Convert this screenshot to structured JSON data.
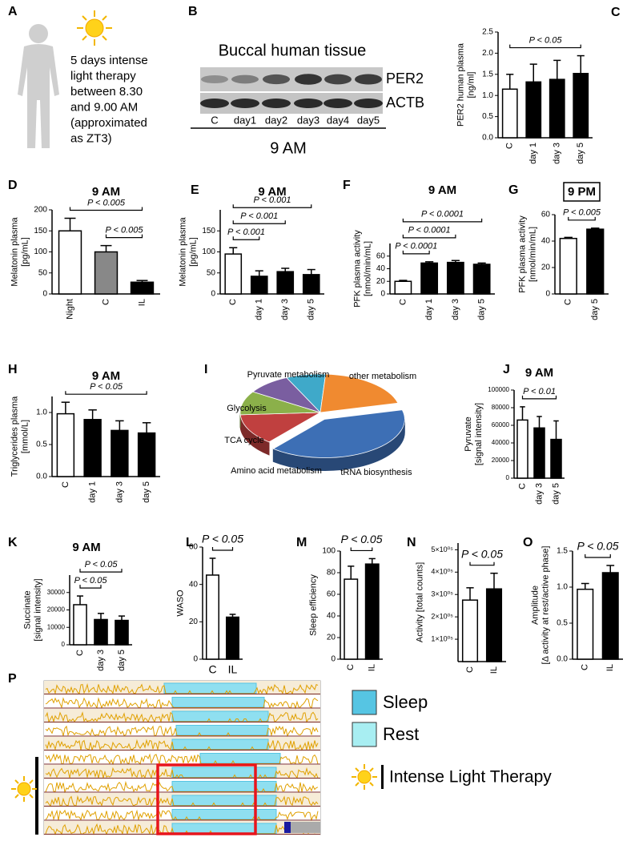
{
  "panel_a": {
    "panel": "A",
    "lines": [
      "5 days intense",
      "light therapy",
      "between 8.30",
      "and 9.00 AM",
      "(approximated",
      "as  ZT3)"
    ]
  },
  "panel_b": {
    "panel": "B",
    "title": "Buccal human tissue",
    "rows": [
      "PER2",
      "ACTB"
    ],
    "lanes": [
      "C",
      "day1",
      "day2",
      "day3",
      "day4",
      "day5"
    ],
    "time": "9 AM"
  },
  "chart_data": [
    {
      "panel": "C",
      "type": "bar",
      "ylabel": [
        "PER2 human plasma",
        "[ng/ml]"
      ],
      "categories": [
        "C",
        "day 1",
        "day 3",
        "day 5"
      ],
      "values": [
        1.15,
        1.32,
        1.38,
        1.52
      ],
      "errors": [
        0.35,
        0.42,
        0.45,
        0.42
      ],
      "colors": [
        "#ffffff",
        "#000000",
        "#000000",
        "#000000"
      ],
      "ylim": [
        0,
        2.5
      ],
      "yticks": [
        {
          "value": 0,
          "label": "0.0"
        },
        {
          "value": 0.5,
          "label": "0.5"
        },
        {
          "value": 1,
          "label": "1.0"
        },
        {
          "value": 1.5,
          "label": "1.5"
        },
        {
          "value": 2,
          "label": "2.0"
        },
        {
          "value": 2.5,
          "label": "2.5"
        }
      ],
      "annotations": [
        {
          "text": "P < 0.05",
          "between": [
            "C",
            "day 5"
          ]
        }
      ]
    },
    {
      "panel": "D",
      "type": "bar",
      "title": "9 AM",
      "ylabel": [
        "Melatonin plasma",
        "[pg/mL]"
      ],
      "categories": [
        "Night",
        "C",
        "IL"
      ],
      "values": [
        150,
        100,
        28
      ],
      "errors": [
        30,
        15,
        4
      ],
      "colors": [
        "#ffffff",
        "#888888",
        "#000000"
      ],
      "ylim": [
        0,
        200
      ],
      "yticks": [
        0,
        50,
        100,
        150,
        200
      ],
      "annotations": [
        {
          "text": "P < 0.005",
          "between": [
            "Night",
            "IL"
          ]
        },
        {
          "text": "P < 0.005",
          "between": [
            "C",
            "IL"
          ]
        }
      ]
    },
    {
      "panel": "E",
      "type": "bar",
      "title": "9 AM",
      "ylabel": [
        "Melatonin plasma",
        "[pg/mL]"
      ],
      "categories": [
        "C",
        "day 1",
        "day 3",
        "day 5"
      ],
      "values": [
        95,
        42,
        53,
        46
      ],
      "errors": [
        15,
        13,
        8,
        12
      ],
      "colors": [
        "#ffffff",
        "#000000",
        "#000000",
        "#000000"
      ],
      "ylim": [
        0,
        200
      ],
      "yticks": [
        0,
        50,
        100,
        150
      ],
      "annotations": [
        {
          "text": "P < 0.001",
          "between": [
            "C",
            "day 5"
          ]
        },
        {
          "text": "P < 0.001",
          "between": [
            "C",
            "day 3"
          ]
        },
        {
          "text": "P < 0.001",
          "between": [
            "C",
            "day 1"
          ]
        }
      ]
    },
    {
      "panel": "F",
      "type": "bar",
      "title": "9  AM",
      "ylabel": [
        "PFK plasma activity",
        "[nmol/min/mL]"
      ],
      "categories": [
        "C",
        "day 1",
        "day 3",
        "day 5"
      ],
      "values": [
        20,
        49,
        50,
        47
      ],
      "errors": [
        1.5,
        2,
        3,
        2
      ],
      "colors": [
        "#ffffff",
        "#000000",
        "#000000",
        "#000000"
      ],
      "ylim": [
        0,
        80
      ],
      "yticks": [
        0,
        20,
        40,
        60
      ],
      "annotations": [
        {
          "text": "P < 0.0001",
          "between": [
            "C",
            "day 5"
          ]
        },
        {
          "text": "P < 0.0001",
          "between": [
            "C",
            "day 3"
          ]
        },
        {
          "text": "P < 0.0001",
          "between": [
            "C",
            "day 1"
          ]
        }
      ]
    },
    {
      "panel": "G",
      "type": "bar",
      "title": "9 PM",
      "title_box": true,
      "ylabel": [
        "PFK plasma activity",
        "[nmol/min/mL]"
      ],
      "categories": [
        "C",
        "day 5"
      ],
      "values": [
        42,
        49
      ],
      "errors": [
        0.8,
        0.8
      ],
      "colors": [
        "#ffffff",
        "#000000"
      ],
      "ylim": [
        0,
        60
      ],
      "yticks": [
        0,
        20,
        40,
        60
      ],
      "annotations": [
        {
          "text": "P < 0.005",
          "between": [
            "C",
            "day 5"
          ]
        }
      ]
    },
    {
      "panel": "H",
      "type": "bar",
      "title": "9 AM",
      "ylabel": [
        "Triglycerides plasma",
        "[mmol/L]"
      ],
      "categories": [
        "C",
        "day 1",
        "day 3",
        "day 5"
      ],
      "values": [
        0.98,
        0.89,
        0.72,
        0.68
      ],
      "errors": [
        0.18,
        0.15,
        0.15,
        0.16
      ],
      "colors": [
        "#ffffff",
        "#000000",
        "#000000",
        "#000000"
      ],
      "ylim": [
        0,
        1.25
      ],
      "yticks": [
        {
          "value": 0,
          "label": "0.0"
        },
        {
          "value": 0.5,
          "label": "0.5"
        },
        {
          "value": 1,
          "label": "1.0"
        }
      ],
      "annotations": [
        {
          "text": "P < 0.05",
          "between": [
            "C",
            "day 5"
          ]
        }
      ]
    },
    {
      "panel": "I",
      "type": "pie",
      "categories": [
        "Pyruvate metabolism",
        "other metabolism",
        "tRNA biosynthesis",
        "Amino acid metabolism",
        "TCA cycle",
        "Glycolysis"
      ],
      "values": [
        8,
        20,
        40,
        13,
        10,
        9
      ],
      "colors": [
        "#3fa9c9",
        "#f08a30",
        "#3d6fb5",
        "#c0403f",
        "#8bb04a",
        "#7a5ea0"
      ]
    },
    {
      "panel": "J",
      "type": "bar",
      "title": "9 AM",
      "ylabel": [
        "Pyruvate",
        "[signal intensity]"
      ],
      "categories": [
        "C",
        "day 3",
        "day 5"
      ],
      "values": [
        66000,
        57000,
        44000
      ],
      "errors": [
        15000,
        13000,
        21000
      ],
      "colors": [
        "#ffffff",
        "#000000",
        "#000000"
      ],
      "ylim": [
        0,
        100000
      ],
      "yticks": [
        0,
        20000,
        40000,
        60000,
        80000,
        100000
      ],
      "annotations": [
        {
          "text": "P < 0.01",
          "between": [
            "C",
            "day 5"
          ]
        }
      ]
    },
    {
      "panel": "K",
      "type": "bar",
      "title": "9  AM",
      "ylabel": [
        "Succinate",
        "[signal intensity]"
      ],
      "categories": [
        "C",
        "day 3",
        "day 5"
      ],
      "values": [
        23000,
        14500,
        14000
      ],
      "errors": [
        5000,
        3500,
        2500
      ],
      "colors": [
        "#ffffff",
        "#000000",
        "#000000"
      ],
      "ylim": [
        0,
        40000
      ],
      "yticks": [
        0,
        10000,
        20000,
        30000
      ],
      "annotations": [
        {
          "text": "P < 0.05",
          "between": [
            "C",
            "day 5"
          ]
        },
        {
          "text": "P < 0.05",
          "between": [
            "C",
            "day 3"
          ]
        }
      ]
    },
    {
      "panel": "L",
      "type": "bar",
      "ylabel": [
        "WASO"
      ],
      "categories": [
        "C",
        "IL"
      ],
      "values": [
        45,
        22.5
      ],
      "errors": [
        9,
        1.5
      ],
      "colors": [
        "#ffffff",
        "#000000"
      ],
      "ylim": [
        0,
        60
      ],
      "yticks": [
        0,
        20,
        40,
        60
      ],
      "annotations": [
        {
          "text": "P < 0.05",
          "between": [
            "C",
            "IL"
          ]
        }
      ]
    },
    {
      "panel": "M",
      "type": "bar",
      "ylabel": [
        "Sleep efficiency"
      ],
      "categories": [
        "C",
        "IL"
      ],
      "values": [
        74,
        88
      ],
      "errors": [
        12,
        5
      ],
      "colors": [
        "#ffffff",
        "#000000"
      ],
      "ylim": [
        0,
        100
      ],
      "yticks": [
        0,
        20,
        40,
        60,
        80,
        100
      ],
      "annotations": [
        {
          "text": "P < 0.05",
          "between": [
            "C",
            "IL"
          ]
        }
      ]
    },
    {
      "panel": "N",
      "type": "bar",
      "ylabel": [
        "Activity [total counts]"
      ],
      "categories": [
        "C",
        "IL"
      ],
      "values": [
        275000,
        325000
      ],
      "errors": [
        55000,
        70000
      ],
      "colors": [
        "#ffffff",
        "#000000"
      ],
      "ylim": [
        0,
        530000
      ],
      "yticks": [
        {
          "value": 100000,
          "label": "1×10⁰⁵"
        },
        {
          "value": 200000,
          "label": "2×10⁰⁵"
        },
        {
          "value": 300000,
          "label": "3×10⁰⁵"
        },
        {
          "value": 400000,
          "label": "4×10⁰⁵"
        },
        {
          "value": 500000,
          "label": "5×10⁰⁵"
        }
      ],
      "annotations": [
        {
          "text": "P < 0.05",
          "between": [
            "C",
            "IL"
          ]
        }
      ]
    },
    {
      "panel": "O",
      "type": "bar",
      "ylabel": [
        "Amplitude",
        "[Δ activity at rest/active phase]"
      ],
      "categories": [
        "C",
        "IL"
      ],
      "values": [
        0.97,
        1.2
      ],
      "errors": [
        0.08,
        0.1
      ],
      "colors": [
        "#ffffff",
        "#000000"
      ],
      "ylim": [
        0,
        1.5
      ],
      "yticks": [
        {
          "value": 0,
          "label": "0.0"
        },
        {
          "value": 0.5,
          "label": "0.5"
        },
        {
          "value": 1,
          "label": "1.0"
        },
        {
          "value": 1.5,
          "label": "1.5"
        }
      ],
      "annotations": [
        {
          "text": "P < 0.05",
          "between": [
            "C",
            "IL"
          ]
        }
      ]
    }
  ],
  "panel_p": {
    "panel": "P",
    "legend": [
      "Sleep",
      "Rest",
      "Intense Light Therapy"
    ]
  }
}
